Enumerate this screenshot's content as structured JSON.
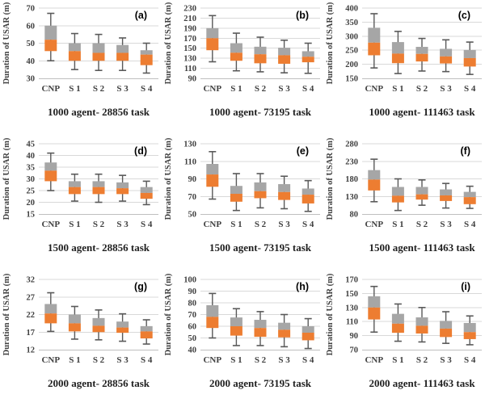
{
  "figure": {
    "ylabel": "Duration of USAR (m)",
    "categories": [
      "CNP",
      "S 1",
      "S 2",
      "S 3",
      "S 4"
    ],
    "colors": {
      "box_upper": "#a6a6a6",
      "box_lower": "#ed7d31",
      "whisker": "#595959",
      "gridline": "#d9d9d9",
      "axis_line": "#bfbfbf",
      "tick_text": "#404040",
      "title_text": "#1f1f1f",
      "panel_text": "#000000",
      "background": "#ffffff"
    }
  },
  "chart_data": [
    {
      "type": "boxplot",
      "panel": "(a)",
      "title": "1000 agent- 28856 task",
      "ylabel": "Duration of USAR (m)",
      "categories": [
        "CNP",
        "S 1",
        "S 2",
        "S 3",
        "S 4"
      ],
      "ylim": [
        30,
        70
      ],
      "yticks": [
        30,
        40,
        50,
        60,
        70
      ],
      "series": [
        {
          "name": "CNP",
          "whisker_low": 40,
          "box_low": 45.5,
          "mid": 52,
          "box_high": 60,
          "whisker_high": 67
        },
        {
          "name": "S 1",
          "whisker_low": 35,
          "box_low": 40,
          "mid": 45.5,
          "box_high": 50,
          "whisker_high": 55.5
        },
        {
          "name": "S 2",
          "whisker_low": 34.5,
          "box_low": 40,
          "mid": 44.5,
          "box_high": 50,
          "whisker_high": 55
        },
        {
          "name": "S 3",
          "whisker_low": 34.5,
          "box_low": 40,
          "mid": 44.5,
          "box_high": 49,
          "whisker_high": 53
        },
        {
          "name": "S 4",
          "whisker_low": 33,
          "box_low": 37.5,
          "mid": 43.5,
          "box_high": 46,
          "whisker_high": 50
        }
      ]
    },
    {
      "type": "boxplot",
      "panel": "(b)",
      "title": "1000 agent- 73195 task",
      "ylabel": "Duration of USAR (m)",
      "categories": [
        "CNP",
        "S 1",
        "S 2",
        "S 3",
        "S 4"
      ],
      "ylim": [
        90,
        230
      ],
      "yticks": [
        90,
        110,
        130,
        150,
        170,
        190,
        210,
        230
      ],
      "series": [
        {
          "name": "CNP",
          "whisker_low": 123,
          "box_low": 146,
          "mid": 170,
          "box_high": 190,
          "whisker_high": 215
        },
        {
          "name": "S 1",
          "whisker_low": 105,
          "box_low": 125,
          "mid": 141,
          "box_high": 160,
          "whisker_high": 180
        },
        {
          "name": "S 2",
          "whisker_low": 103,
          "box_low": 120,
          "mid": 138,
          "box_high": 153,
          "whisker_high": 172
        },
        {
          "name": "S 3",
          "whisker_low": 101,
          "box_low": 119,
          "mid": 136,
          "box_high": 151,
          "whisker_high": 166
        },
        {
          "name": "S 4",
          "whisker_low": 100,
          "box_low": 122,
          "mid": 133,
          "box_high": 144,
          "whisker_high": 160
        }
      ]
    },
    {
      "type": "boxplot",
      "panel": "(c)",
      "title": "1000 agent- 111463 task",
      "ylabel": "Duration of USAR (m)",
      "categories": [
        "CNP",
        "S 1",
        "S 2",
        "S 3",
        "S 4"
      ],
      "ylim": [
        150,
        400
      ],
      "yticks": [
        150,
        200,
        250,
        300,
        350,
        400
      ],
      "series": [
        {
          "name": "CNP",
          "whisker_low": 187,
          "box_low": 232,
          "mid": 277,
          "box_high": 330,
          "whisker_high": 380
        },
        {
          "name": "S 1",
          "whisker_low": 167,
          "box_low": 204,
          "mid": 238,
          "box_high": 279,
          "whisker_high": 317
        },
        {
          "name": "S 2",
          "whisker_low": 176,
          "box_low": 210,
          "mid": 237,
          "box_high": 262,
          "whisker_high": 292
        },
        {
          "name": "S 3",
          "whisker_low": 174,
          "box_low": 203,
          "mid": 228,
          "box_high": 255,
          "whisker_high": 287
        },
        {
          "name": "S 4",
          "whisker_low": 164,
          "box_low": 192,
          "mid": 222,
          "box_high": 251,
          "whisker_high": 279
        }
      ]
    },
    {
      "type": "boxplot",
      "panel": "(d)",
      "title": "1500 agent- 28856 task",
      "ylabel": "Duration of USAR (m)",
      "categories": [
        "CNP",
        "S 1",
        "S 2",
        "S 3",
        "S 4"
      ],
      "ylim": [
        15,
        45
      ],
      "yticks": [
        15,
        20,
        25,
        30,
        35,
        40,
        45
      ],
      "series": [
        {
          "name": "CNP",
          "whisker_low": 25,
          "box_low": 29,
          "mid": 33.5,
          "box_high": 37,
          "whisker_high": 41
        },
        {
          "name": "S 1",
          "whisker_low": 20.5,
          "box_low": 23.5,
          "mid": 26.5,
          "box_high": 29,
          "whisker_high": 32
        },
        {
          "name": "S 2",
          "whisker_low": 20,
          "box_low": 23.5,
          "mid": 26.5,
          "box_high": 29,
          "whisker_high": 32
        },
        {
          "name": "S 3",
          "whisker_low": 20.5,
          "box_low": 23.5,
          "mid": 26,
          "box_high": 28.5,
          "whisker_high": 31.5
        },
        {
          "name": "S 4",
          "whisker_low": 19,
          "box_low": 21.5,
          "mid": 24,
          "box_high": 26.5,
          "whisker_high": 29
        }
      ]
    },
    {
      "type": "boxplot",
      "panel": "(e)",
      "title": "1500 agent- 73195 task",
      "ylabel": "Duration of USAR (m)",
      "categories": [
        "CNP",
        "S 1",
        "S 2",
        "S 3",
        "S 4"
      ],
      "ylim": [
        50,
        130
      ],
      "yticks": [
        50,
        70,
        90,
        110,
        130
      ],
      "series": [
        {
          "name": "CNP",
          "whisker_low": 67,
          "box_low": 81,
          "mid": 95,
          "box_high": 107,
          "whisker_high": 121
        },
        {
          "name": "S 1",
          "whisker_low": 54,
          "box_low": 64,
          "mid": 73,
          "box_high": 82,
          "whisker_high": 96
        },
        {
          "name": "S 2",
          "whisker_low": 57,
          "box_low": 68,
          "mid": 76,
          "box_high": 86,
          "whisker_high": 96
        },
        {
          "name": "S 3",
          "whisker_low": 56,
          "box_low": 66,
          "mid": 75,
          "box_high": 84,
          "whisker_high": 93
        },
        {
          "name": "S 4",
          "whisker_low": 53,
          "box_low": 62,
          "mid": 72,
          "box_high": 79,
          "whisker_high": 88
        }
      ]
    },
    {
      "type": "boxplot",
      "panel": "(f)",
      "title": "1500 agent- 111463 task",
      "ylabel": "Duration of USAR (m)",
      "categories": [
        "CNP",
        "S 1",
        "S 2",
        "S 3",
        "S 4"
      ],
      "ylim": [
        80,
        280
      ],
      "yticks": [
        80,
        130,
        180,
        230,
        280
      ],
      "series": [
        {
          "name": "CNP",
          "whisker_low": 115,
          "box_low": 147,
          "mid": 178,
          "box_high": 205,
          "whisker_high": 236
        },
        {
          "name": "S 1",
          "whisker_low": 90,
          "box_low": 113,
          "mid": 132,
          "box_high": 157,
          "whisker_high": 180
        },
        {
          "name": "S 2",
          "whisker_low": 105,
          "box_low": 121,
          "mid": 136,
          "box_high": 157,
          "whisker_high": 177
        },
        {
          "name": "S 3",
          "whisker_low": 97,
          "box_low": 117,
          "mid": 133,
          "box_high": 150,
          "whisker_high": 167
        },
        {
          "name": "S 4",
          "whisker_low": 96,
          "box_low": 108,
          "mid": 128,
          "box_high": 143,
          "whisker_high": 159
        }
      ]
    },
    {
      "type": "boxplot",
      "panel": "(g)",
      "title": "2000 agent- 28856 task",
      "ylabel": "Duration of USAR (m)",
      "categories": [
        "CNP",
        "S 1",
        "S 2",
        "S 3",
        "S 4"
      ],
      "ylim": [
        12,
        32
      ],
      "yticks": [
        12,
        17,
        22,
        27,
        32
      ],
      "series": [
        {
          "name": "CNP",
          "whisker_low": 17.2,
          "box_low": 19.5,
          "mid": 22.3,
          "box_high": 25,
          "whisker_high": 28.2
        },
        {
          "name": "S 1",
          "whisker_low": 15,
          "box_low": 17.2,
          "mid": 19.5,
          "box_high": 22,
          "whisker_high": 24.3
        },
        {
          "name": "S 2",
          "whisker_low": 14.8,
          "box_low": 17,
          "mid": 18.8,
          "box_high": 21,
          "whisker_high": 23.3
        },
        {
          "name": "S 3",
          "whisker_low": 14.4,
          "box_low": 16.8,
          "mid": 18.3,
          "box_high": 20,
          "whisker_high": 22.2
        },
        {
          "name": "S 4",
          "whisker_low": 13.6,
          "box_low": 15.2,
          "mid": 17.2,
          "box_high": 18.7,
          "whisker_high": 20.5
        }
      ]
    },
    {
      "type": "boxplot",
      "panel": "(h)",
      "title": "2000 agent- 73195 task",
      "ylabel": "Duration of USAR (m)",
      "categories": [
        "CNP",
        "S 1",
        "S 2",
        "S 3",
        "S 4"
      ],
      "ylim": [
        40,
        100
      ],
      "yticks": [
        40,
        50,
        60,
        70,
        80,
        90,
        100
      ],
      "series": [
        {
          "name": "CNP",
          "whisker_low": 50,
          "box_low": 58.5,
          "mid": 68,
          "box_high": 78,
          "whisker_high": 88
        },
        {
          "name": "S 1",
          "whisker_low": 43.5,
          "box_low": 52,
          "mid": 60,
          "box_high": 67.5,
          "whisker_high": 75
        },
        {
          "name": "S 2",
          "whisker_low": 43.5,
          "box_low": 51,
          "mid": 58.5,
          "box_high": 65.5,
          "whisker_high": 72.5
        },
        {
          "name": "S 3",
          "whisker_low": 42.5,
          "box_low": 50.5,
          "mid": 57,
          "box_high": 63,
          "whisker_high": 70
        },
        {
          "name": "S 4",
          "whisker_low": 41,
          "box_low": 48,
          "mid": 54.5,
          "box_high": 60,
          "whisker_high": 66.5
        }
      ]
    },
    {
      "type": "boxplot",
      "panel": "(i)",
      "title": "2000 agent- 111463 task",
      "ylabel": "Duration of USAR (m)",
      "categories": [
        "CNP",
        "S 1",
        "S 2",
        "S 3",
        "S 4"
      ],
      "ylim": [
        70,
        170
      ],
      "yticks": [
        70,
        90,
        110,
        130,
        150,
        170
      ],
      "series": [
        {
          "name": "CNP",
          "whisker_low": 95,
          "box_low": 113,
          "mid": 130,
          "box_high": 146,
          "whisker_high": 160
        },
        {
          "name": "S 1",
          "whisker_low": 82,
          "box_low": 94,
          "mid": 107,
          "box_high": 121,
          "whisker_high": 135
        },
        {
          "name": "S 2",
          "whisker_low": 81,
          "box_low": 93,
          "mid": 104,
          "box_high": 116,
          "whisker_high": 130
        },
        {
          "name": "S 3",
          "whisker_low": 79,
          "box_low": 88,
          "mid": 100,
          "box_high": 111,
          "whisker_high": 124
        },
        {
          "name": "S 4",
          "whisker_low": 77,
          "box_low": 85,
          "mid": 95,
          "box_high": 108,
          "whisker_high": 118
        }
      ]
    }
  ]
}
